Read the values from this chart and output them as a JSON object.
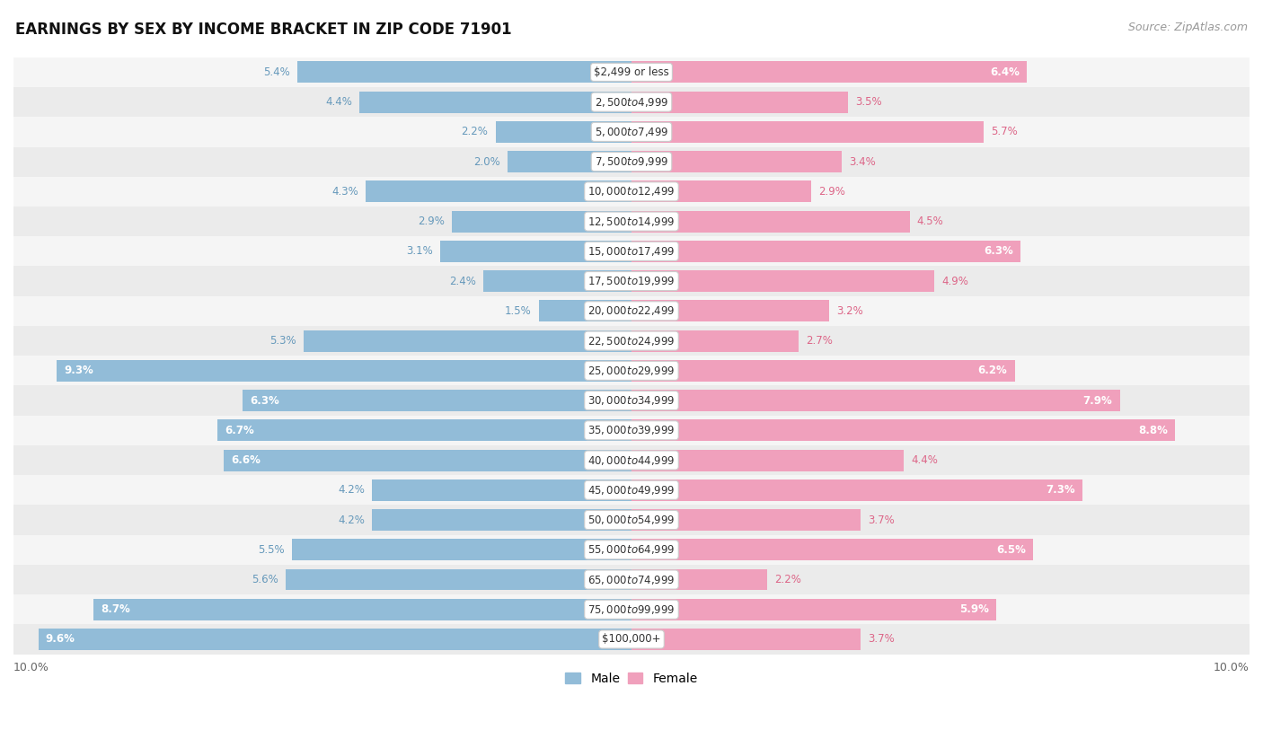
{
  "title": "EARNINGS BY SEX BY INCOME BRACKET IN ZIP CODE 71901",
  "source": "Source: ZipAtlas.com",
  "categories": [
    "$2,499 or less",
    "$2,500 to $4,999",
    "$5,000 to $7,499",
    "$7,500 to $9,999",
    "$10,000 to $12,499",
    "$12,500 to $14,999",
    "$15,000 to $17,499",
    "$17,500 to $19,999",
    "$20,000 to $22,499",
    "$22,500 to $24,999",
    "$25,000 to $29,999",
    "$30,000 to $34,999",
    "$35,000 to $39,999",
    "$40,000 to $44,999",
    "$45,000 to $49,999",
    "$50,000 to $54,999",
    "$55,000 to $64,999",
    "$65,000 to $74,999",
    "$75,000 to $99,999",
    "$100,000+"
  ],
  "male_values": [
    5.4,
    4.4,
    2.2,
    2.0,
    4.3,
    2.9,
    3.1,
    2.4,
    1.5,
    5.3,
    9.3,
    6.3,
    6.7,
    6.6,
    4.2,
    4.2,
    5.5,
    5.6,
    8.7,
    9.6
  ],
  "female_values": [
    6.4,
    3.5,
    5.7,
    3.4,
    2.9,
    4.5,
    6.3,
    4.9,
    3.2,
    2.7,
    6.2,
    7.9,
    8.8,
    4.4,
    7.3,
    3.7,
    6.5,
    2.2,
    5.9,
    3.7
  ],
  "male_color": "#92bcd8",
  "female_color": "#f0a0bc",
  "male_label_color": "#6699bb",
  "female_label_color": "#dd6688",
  "bg_even": "#f5f5f5",
  "bg_odd": "#ebebeb",
  "xlim": 10.0,
  "bar_height": 0.72,
  "title_fontsize": 12,
  "source_fontsize": 9,
  "label_fontsize": 8.5,
  "cat_fontsize": 8.5
}
